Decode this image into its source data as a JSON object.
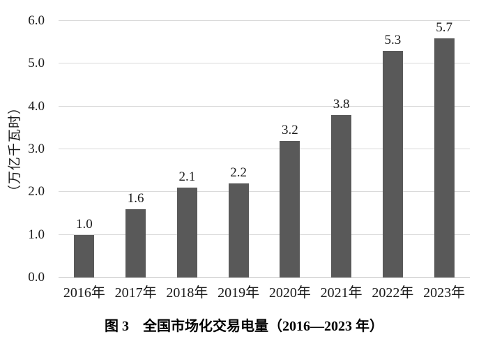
{
  "figure": {
    "caption": "图 3　全国市场化交易电量（2016—2023 年）"
  },
  "chart_data": {
    "type": "bar",
    "title": "图 3 全国市场化交易电量（2016—2023 年）",
    "categories": [
      "2016年",
      "2017年",
      "2018年",
      "2019年",
      "2020年",
      "2021年",
      "2022年",
      "2023年"
    ],
    "values": [
      1.0,
      1.6,
      2.1,
      2.2,
      3.2,
      3.8,
      5.3,
      5.7
    ],
    "bar_labels": [
      "1.0",
      "1.6",
      "2.1",
      "2.2",
      "3.2",
      "3.8",
      "5.3",
      "5.7"
    ],
    "xlabel": "",
    "ylabel": "（万亿千瓦时）",
    "ylim": [
      0,
      6.0
    ],
    "yticks": [
      "0.0",
      "1.0",
      "2.0",
      "3.0",
      "4.0",
      "5.0",
      "6.0"
    ],
    "grid": true,
    "legend": false,
    "colors": {
      "bar": "#595959",
      "gridline": "#d9d9d9",
      "baseline": "#c4c4c4",
      "text": "#1a1a1a"
    }
  }
}
